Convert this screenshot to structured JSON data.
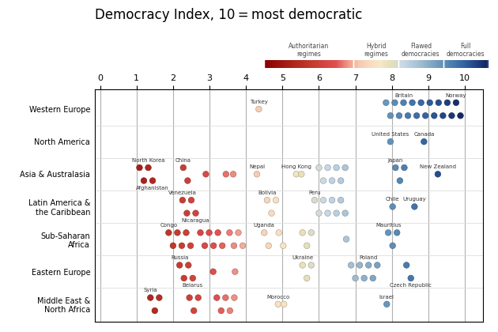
{
  "chart_data": {
    "type": "strip",
    "title": "Democracy Index, 10 = most democratic",
    "categories": [
      "Western Europe",
      "North America",
      "Asia & Australasia",
      "Latin America &\nthe Caribbean",
      "Sub-Saharan\nAfrica",
      "Eastern Europe",
      "Middle East &\nNorth Africa"
    ],
    "xlim": [
      -0.15,
      10.5
    ],
    "xticks": [
      0,
      1,
      2,
      3,
      4,
      5,
      6,
      7,
      8,
      9,
      10
    ],
    "grid": "x",
    "colormap": [
      [
        0.0,
        "#8B0000"
      ],
      [
        0.2,
        "#c0392b"
      ],
      [
        0.32,
        "#e05050"
      ],
      [
        0.38,
        "#f0a090"
      ],
      [
        0.42,
        "#f5c8b0"
      ],
      [
        0.48,
        "#f8dfc0"
      ],
      [
        0.52,
        "#f5e8c8"
      ],
      [
        0.56,
        "#e8e0b8"
      ],
      [
        0.62,
        "#c8d8e8"
      ],
      [
        0.7,
        "#a0bcd0"
      ],
      [
        0.8,
        "#6090b8"
      ],
      [
        0.9,
        "#3060a0"
      ],
      [
        1.0,
        "#102060"
      ]
    ],
    "colorbar": {
      "range": [
        0,
        10
      ],
      "bands": [
        {
          "from": 0,
          "to": 4,
          "label": "Authoritarian\nregimes"
        },
        {
          "from": 4,
          "to": 6,
          "label": "Hybrid\nregimes"
        },
        {
          "from": 6,
          "to": 8,
          "label": "Flawed\ndemocracies"
        },
        {
          "from": 8,
          "to": 10,
          "label": "Full\ndemocracies"
        }
      ]
    },
    "points": [
      {
        "category": "Western Europe",
        "x": 4.35,
        "label": "Turkey"
      },
      {
        "category": "Western Europe",
        "x": 7.84
      },
      {
        "category": "Western Europe",
        "x": 7.96
      },
      {
        "category": "Western Europe",
        "x": 8.08
      },
      {
        "category": "Western Europe",
        "x": 8.2
      },
      {
        "category": "Western Europe",
        "x": 8.32,
        "label": "Britain"
      },
      {
        "category": "Western Europe",
        "x": 8.44
      },
      {
        "category": "Western Europe",
        "x": 8.56
      },
      {
        "category": "Western Europe",
        "x": 8.68
      },
      {
        "category": "Western Europe",
        "x": 8.8
      },
      {
        "category": "Western Europe",
        "x": 8.92
      },
      {
        "category": "Western Europe",
        "x": 9.04
      },
      {
        "category": "Western Europe",
        "x": 9.16
      },
      {
        "category": "Western Europe",
        "x": 9.28
      },
      {
        "category": "Western Europe",
        "x": 9.4
      },
      {
        "category": "Western Europe",
        "x": 9.52
      },
      {
        "category": "Western Europe",
        "x": 9.64
      },
      {
        "category": "Western Europe",
        "x": 9.76,
        "label": "Norway"
      },
      {
        "category": "Western Europe",
        "x": 9.88
      },
      {
        "category": "North America",
        "x": 7.96,
        "label": "United States"
      },
      {
        "category": "North America",
        "x": 8.88,
        "label": "Canada"
      },
      {
        "category": "Asia & Australasia",
        "x": 1.08
      },
      {
        "category": "Asia & Australasia",
        "x": 1.2
      },
      {
        "category": "Asia & Australasia",
        "x": 1.32,
        "label": "North Korea"
      },
      {
        "category": "Asia & Australasia",
        "x": 1.44,
        "label": "Afghanistan"
      },
      {
        "category": "Asia & Australasia",
        "x": 2.28,
        "label": "China"
      },
      {
        "category": "Asia & Australasia",
        "x": 2.4
      },
      {
        "category": "Asia & Australasia",
        "x": 2.9
      },
      {
        "category": "Asia & Australasia",
        "x": 3.45
      },
      {
        "category": "Asia & Australasia",
        "x": 3.65
      },
      {
        "category": "Asia & Australasia",
        "x": 4.3,
        "label": "Nepal"
      },
      {
        "category": "Asia & Australasia",
        "x": 5.38,
        "label": "Hong Kong"
      },
      {
        "category": "Asia & Australasia",
        "x": 5.52
      },
      {
        "category": "Asia & Australasia",
        "x": 6.0
      },
      {
        "category": "Asia & Australasia",
        "x": 6.12
      },
      {
        "category": "Asia & Australasia",
        "x": 6.24
      },
      {
        "category": "Asia & Australasia",
        "x": 6.36
      },
      {
        "category": "Asia & Australasia",
        "x": 6.48
      },
      {
        "category": "Asia & Australasia",
        "x": 6.6
      },
      {
        "category": "Asia & Australasia",
        "x": 6.72
      },
      {
        "category": "Asia & Australasia",
        "x": 8.1,
        "label": "Japan"
      },
      {
        "category": "Asia & Australasia",
        "x": 8.22
      },
      {
        "category": "Asia & Australasia",
        "x": 8.34
      },
      {
        "category": "Asia & Australasia",
        "x": 9.26,
        "label": "New Zealand"
      },
      {
        "category": "Latin America &\nthe Caribbean",
        "x": 2.26,
        "label": "Venezuela"
      },
      {
        "category": "Latin America &\nthe Caribbean",
        "x": 2.38
      },
      {
        "category": "Latin America &\nthe Caribbean",
        "x": 2.5
      },
      {
        "category": "Latin America &\nthe Caribbean",
        "x": 2.62,
        "label": "Nicaragua"
      },
      {
        "category": "Latin America &\nthe Caribbean",
        "x": 4.58,
        "label": "Bolivia"
      },
      {
        "category": "Latin America &\nthe Caribbean",
        "x": 4.7
      },
      {
        "category": "Latin America &\nthe Caribbean",
        "x": 4.82
      },
      {
        "category": "Latin America &\nthe Caribbean",
        "x": 5.88,
        "label": "Peru"
      },
      {
        "category": "Latin America &\nthe Caribbean",
        "x": 6.0
      },
      {
        "category": "Latin America &\nthe Caribbean",
        "x": 6.12
      },
      {
        "category": "Latin America &\nthe Caribbean",
        "x": 6.24
      },
      {
        "category": "Latin America &\nthe Caribbean",
        "x": 6.36
      },
      {
        "category": "Latin America &\nthe Caribbean",
        "x": 6.48
      },
      {
        "category": "Latin America &\nthe Caribbean",
        "x": 6.6
      },
      {
        "category": "Latin America &\nthe Caribbean",
        "x": 6.72
      },
      {
        "category": "Latin America &\nthe Caribbean",
        "x": 8.02,
        "label": "Chile"
      },
      {
        "category": "Latin America &\nthe Caribbean",
        "x": 8.62,
        "label": "Uruguay"
      },
      {
        "category": "Sub-Saharan\nAfrica",
        "x": 1.88,
        "label": "Congo"
      },
      {
        "category": "Sub-Saharan\nAfrica",
        "x": 2.0
      },
      {
        "category": "Sub-Saharan\nAfrica",
        "x": 2.12
      },
      {
        "category": "Sub-Saharan\nAfrica",
        "x": 2.24
      },
      {
        "category": "Sub-Saharan\nAfrica",
        "x": 2.36
      },
      {
        "category": "Sub-Saharan\nAfrica",
        "x": 2.48
      },
      {
        "category": "Sub-Saharan\nAfrica",
        "x": 2.75
      },
      {
        "category": "Sub-Saharan\nAfrica",
        "x": 2.87
      },
      {
        "category": "Sub-Saharan\nAfrica",
        "x": 2.99
      },
      {
        "category": "Sub-Saharan\nAfrica",
        "x": 3.11
      },
      {
        "category": "Sub-Saharan\nAfrica",
        "x": 3.23
      },
      {
        "category": "Sub-Saharan\nAfrica",
        "x": 3.35
      },
      {
        "category": "Sub-Saharan\nAfrica",
        "x": 3.55
      },
      {
        "category": "Sub-Saharan\nAfrica",
        "x": 3.67
      },
      {
        "category": "Sub-Saharan\nAfrica",
        "x": 3.79
      },
      {
        "category": "Sub-Saharan\nAfrica",
        "x": 3.91
      },
      {
        "category": "Sub-Saharan\nAfrica",
        "x": 4.5,
        "label": "Uganda"
      },
      {
        "category": "Sub-Saharan\nAfrica",
        "x": 4.62
      },
      {
        "category": "Sub-Saharan\nAfrica",
        "x": 4.9
      },
      {
        "category": "Sub-Saharan\nAfrica",
        "x": 5.02
      },
      {
        "category": "Sub-Saharan\nAfrica",
        "x": 5.55
      },
      {
        "category": "Sub-Saharan\nAfrica",
        "x": 5.67
      },
      {
        "category": "Sub-Saharan\nAfrica",
        "x": 5.79
      },
      {
        "category": "Sub-Saharan\nAfrica",
        "x": 6.75
      },
      {
        "category": "Sub-Saharan\nAfrica",
        "x": 7.9,
        "label": "Mauritius"
      },
      {
        "category": "Sub-Saharan\nAfrica",
        "x": 8.02
      },
      {
        "category": "Sub-Saharan\nAfrica",
        "x": 8.14
      },
      {
        "category": "Eastern Europe",
        "x": 2.18,
        "label": "Russia"
      },
      {
        "category": "Eastern Europe",
        "x": 2.3
      },
      {
        "category": "Eastern Europe",
        "x": 2.42
      },
      {
        "category": "Eastern Europe",
        "x": 2.54,
        "label": "Belarus"
      },
      {
        "category": "Eastern Europe",
        "x": 3.1
      },
      {
        "category": "Eastern Europe",
        "x": 3.7
      },
      {
        "category": "Eastern Europe",
        "x": 5.55,
        "label": "Ukraine"
      },
      {
        "category": "Eastern Europe",
        "x": 5.67
      },
      {
        "category": "Eastern Europe",
        "x": 5.79
      },
      {
        "category": "Eastern Europe",
        "x": 6.88
      },
      {
        "category": "Eastern Europe",
        "x": 7.0
      },
      {
        "category": "Eastern Europe",
        "x": 7.12
      },
      {
        "category": "Eastern Europe",
        "x": 7.24
      },
      {
        "category": "Eastern Europe",
        "x": 7.36,
        "label": "Poland"
      },
      {
        "category": "Eastern Europe",
        "x": 7.48
      },
      {
        "category": "Eastern Europe",
        "x": 7.6
      },
      {
        "category": "Eastern Europe",
        "x": 8.4
      },
      {
        "category": "Eastern Europe",
        "x": 8.52,
        "label": "Czech Republic"
      },
      {
        "category": "Middle East &\nNorth Africa",
        "x": 1.38,
        "label": "Syria"
      },
      {
        "category": "Middle East &\nNorth Africa",
        "x": 1.5
      },
      {
        "category": "Middle East &\nNorth Africa",
        "x": 1.62
      },
      {
        "category": "Middle East &\nNorth Africa",
        "x": 2.45
      },
      {
        "category": "Middle East &\nNorth Africa",
        "x": 2.57
      },
      {
        "category": "Middle East &\nNorth Africa",
        "x": 2.69
      },
      {
        "category": "Middle East &\nNorth Africa",
        "x": 3.2
      },
      {
        "category": "Middle East &\nNorth Africa",
        "x": 3.32
      },
      {
        "category": "Middle East &\nNorth Africa",
        "x": 3.44
      },
      {
        "category": "Middle East &\nNorth Africa",
        "x": 3.56
      },
      {
        "category": "Middle East &\nNorth Africa",
        "x": 3.68
      },
      {
        "category": "Middle East &\nNorth Africa",
        "x": 4.88,
        "label": "Morocco"
      },
      {
        "category": "Middle East &\nNorth Africa",
        "x": 5.04
      },
      {
        "category": "Middle East &\nNorth Africa",
        "x": 7.86,
        "label": "Israel"
      }
    ]
  }
}
